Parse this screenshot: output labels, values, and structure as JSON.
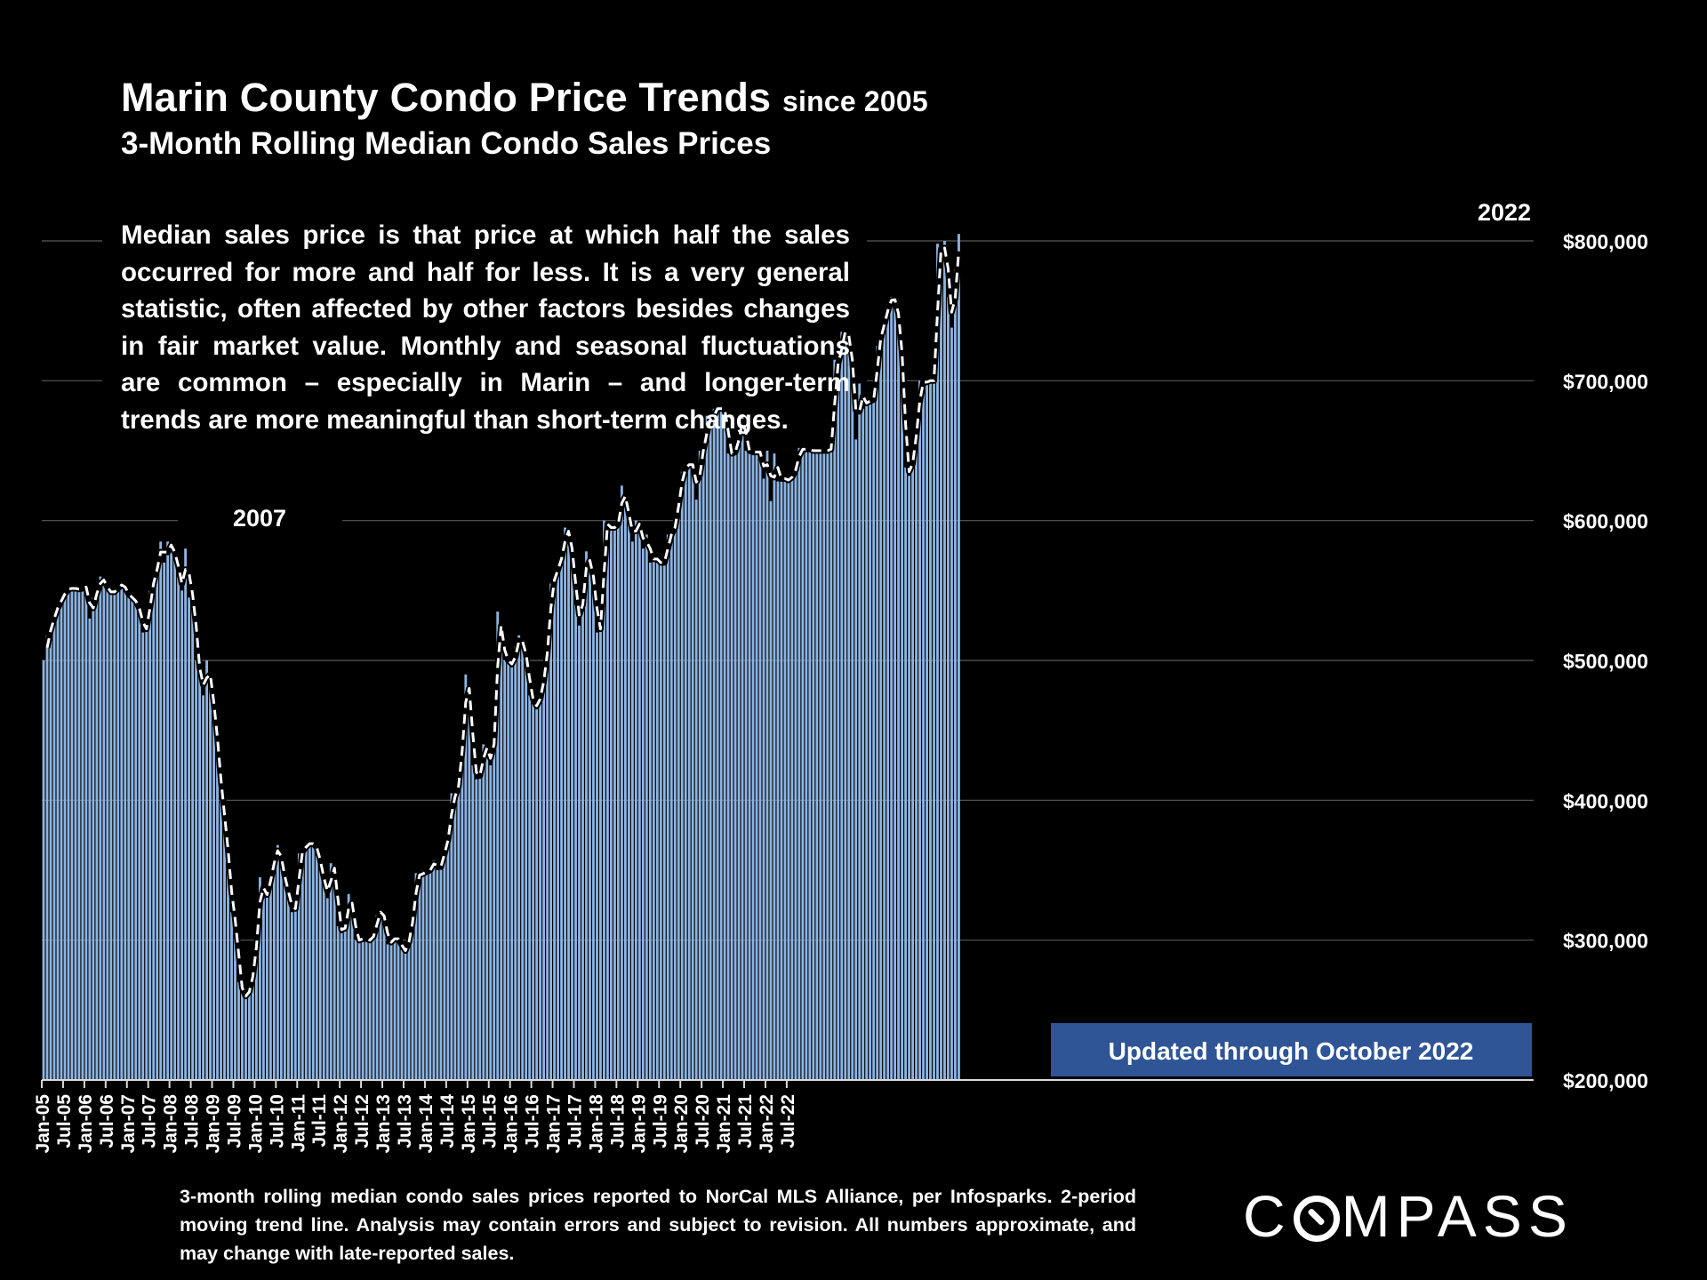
{
  "title_main": "Marin County Condo Price Trends",
  "title_since": "since 2005",
  "subtitle": "3-Month Rolling Median Condo Sales Prices",
  "description": "Median sales price is that price at which half the sales occurred for more and half for less. It is a very general statistic, often affected by other factors besides changes in fair market value. Monthly and seasonal fluctuations are common – especially in Marin – and longer-term trends are more meaningful than short-term changes.",
  "footnote": "3-month rolling median condo sales prices reported to NorCal MLS Alliance, per Infosparks. 2-period moving trend line. Analysis may contain errors and subject to revision. All numbers approximate, and may change with late-reported sales.",
  "logo": "COMPASS",
  "colors": {
    "background": "#000000",
    "bar": "#8db4e2",
    "trend": "#ffffff",
    "banner": "#2f5597",
    "grid": "#595959"
  },
  "chart_data": {
    "type": "bar",
    "title": "Marin County Condo Price Trends since 2005",
    "subtitle": "3-Month Rolling Median Condo Sales Prices",
    "ylabel": "",
    "xlabel": "",
    "ylim": [
      200000,
      800000
    ],
    "yticks": [
      200000,
      300000,
      400000,
      500000,
      600000,
      700000,
      800000
    ],
    "ytick_labels": [
      "$200,000",
      "$300,000",
      "$400,000",
      "$500,000",
      "$600,000",
      "$700,000",
      "$800,000"
    ],
    "start": "Jan-05",
    "end": "Oct-22",
    "xtick_labels": [
      "Jan-05",
      "Jul-05",
      "Jan-06",
      "Jul-06",
      "Jan-07",
      "Jul-07",
      "Jan-08",
      "Jul-08",
      "Jan-09",
      "Jul-09",
      "Jan-10",
      "Jul-10",
      "Jan-11",
      "Jul-11",
      "Jan-12",
      "Jul-12",
      "Jan-13",
      "Jul-13",
      "Jan-14",
      "Jul-14",
      "Jan-15",
      "Jul-15",
      "Jan-16",
      "Jul-16",
      "Jan-17",
      "Jul-17",
      "Jan-18",
      "Jul-18",
      "Jan-19",
      "Jul-19",
      "Jan-20",
      "Jul-20",
      "Jan-21",
      "Jul-21",
      "Jan-22",
      "Jul-22"
    ],
    "series": [
      {
        "name": "3-Month Rolling Median",
        "type": "bar",
        "values": [
          500000,
          518000,
          525000,
          535000,
          540000,
          545000,
          550000,
          552000,
          551000,
          552000,
          550000,
          553000,
          552000,
          530000,
          545000,
          550000,
          560000,
          555000,
          550000,
          548000,
          550000,
          553000,
          555000,
          550000,
          545000,
          545000,
          540000,
          535000,
          520000,
          525000,
          550000,
          560000,
          570000,
          585000,
          570000,
          585000,
          580000,
          575000,
          560000,
          550000,
          580000,
          545000,
          550000,
          500000,
          490000,
          475000,
          500000,
          480000,
          460000,
          430000,
          400000,
          380000,
          350000,
          320000,
          310000,
          270000,
          262000,
          258000,
          268000,
          280000,
          310000,
          345000,
          330000,
          335000,
          350000,
          360000,
          368000,
          352000,
          340000,
          330000,
          320000,
          325000,
          362000,
          365000,
          368000,
          370000,
          368000,
          365000,
          350000,
          340000,
          330000,
          355000,
          348000,
          310000,
          305000,
          312000,
          333000,
          320000,
          300000,
          300000,
          302000,
          300000,
          300000,
          305000,
          318000,
          322000,
          313000,
          297000,
          300000,
          302000,
          300000,
          293000,
          292000,
          305000,
          320000,
          348000,
          345000,
          350000,
          348000,
          352000,
          357000,
          350000,
          355000,
          368000,
          375000,
          405000,
          400000,
          420000,
          450000,
          490000,
          470000,
          425000,
          415000,
          420000,
          440000,
          435000,
          425000,
          455000,
          535000,
          515000,
          500000,
          500000,
          495000,
          510000,
          518000,
          510000,
          500000,
          475000,
          470000,
          465000,
          480000,
          490000,
          520000,
          555000,
          560000,
          570000,
          575000,
          595000,
          590000,
          570000,
          540000,
          525000,
          555000,
          578000,
          565000,
          555000,
          520000,
          525000,
          600000,
          595000,
          595000,
          595000,
          600000,
          625000,
          610000,
          600000,
          585000,
          600000,
          595000,
          580000,
          590000,
          570000,
          575000,
          570000,
          570000,
          570000,
          590000,
          590000,
          600000,
          620000,
          635000,
          640000,
          640000,
          640000,
          615000,
          650000,
          650000,
          675000,
          670000,
          680000,
          680000,
          680000,
          680000,
          648000,
          648000,
          650000,
          665000,
          676000,
          650000,
          650000,
          648000,
          650000,
          648000,
          630000,
          650000,
          614000,
          648000,
          628000,
          632000,
          628000,
          630000,
          632000,
          640000,
          652000,
          650000,
          652000,
          650000,
          650000,
          650000,
          650000,
          650000,
          650000,
          652000,
          715000,
          710000,
          735000,
          735000,
          730000,
          700000,
          658000,
          698000,
          680000,
          688000,
          683000,
          690000,
          725000,
          735000,
          745000,
          755000,
          760000,
          756000,
          740000,
          700000,
          638000,
          632000,
          650000,
          670000,
          700000,
          698000,
          700000,
          700000,
          700000,
          798000,
          790000,
          800000,
          760000,
          738000,
          780000,
          805000
        ]
      },
      {
        "name": "2-period moving trend line",
        "type": "line",
        "values": []
      }
    ],
    "annotations": [
      {
        "text": "2007",
        "at": "Jul-07"
      },
      {
        "text": "2022",
        "at": "Jul-22"
      },
      {
        "text": "Updated through October 2022",
        "style": "banner"
      }
    ]
  }
}
